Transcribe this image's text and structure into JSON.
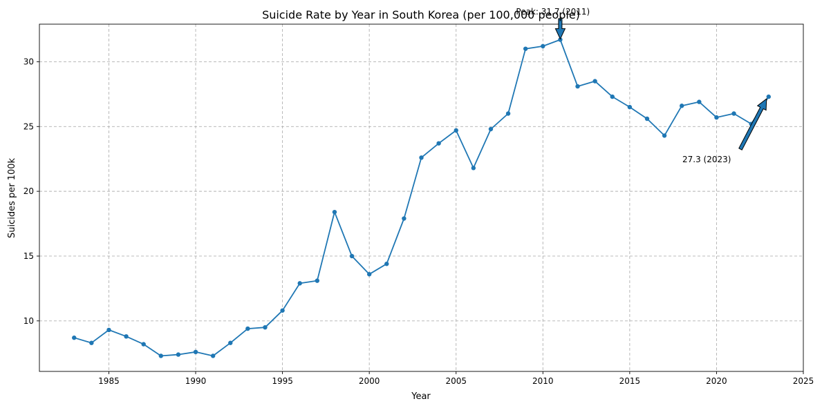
{
  "chart_data": {
    "type": "line",
    "title": "Suicide Rate by Year in South Korea (per 100,000 people)",
    "xlabel": "Year",
    "ylabel": "Suicides per 100k",
    "xlim": [
      1981,
      2025
    ],
    "ylim": [
      6.1,
      32.9
    ],
    "x_ticks": [
      1985,
      1990,
      1995,
      2000,
      2005,
      2010,
      2015,
      2020,
      2025
    ],
    "y_ticks": [
      10,
      15,
      20,
      25,
      30
    ],
    "grid": true,
    "series": [
      {
        "name": "Suicide rate",
        "color": "#1f77b4",
        "x": [
          1983,
          1984,
          1985,
          1986,
          1987,
          1988,
          1989,
          1990,
          1991,
          1992,
          1993,
          1994,
          1995,
          1996,
          1997,
          1998,
          1999,
          2000,
          2001,
          2002,
          2003,
          2004,
          2005,
          2006,
          2007,
          2008,
          2009,
          2010,
          2011,
          2012,
          2013,
          2014,
          2015,
          2016,
          2017,
          2018,
          2019,
          2020,
          2021,
          2022,
          2023
        ],
        "values": [
          8.7,
          8.3,
          9.3,
          8.8,
          8.2,
          7.3,
          7.4,
          7.6,
          7.3,
          8.3,
          9.4,
          9.5,
          10.8,
          12.9,
          13.1,
          18.4,
          15.0,
          13.6,
          14.4,
          17.9,
          22.6,
          23.7,
          24.7,
          21.8,
          24.8,
          26.0,
          31.0,
          31.2,
          31.7,
          28.1,
          28.5,
          27.3,
          26.5,
          25.6,
          24.3,
          26.6,
          26.9,
          25.7,
          26.0,
          25.2,
          27.3
        ]
      }
    ],
    "annotations": [
      {
        "text": "Peak: 31.7 (2011)",
        "x": 2011,
        "y": 31.7
      },
      {
        "text": "27.3 (2023)",
        "x": 2023,
        "y": 27.3
      }
    ]
  }
}
